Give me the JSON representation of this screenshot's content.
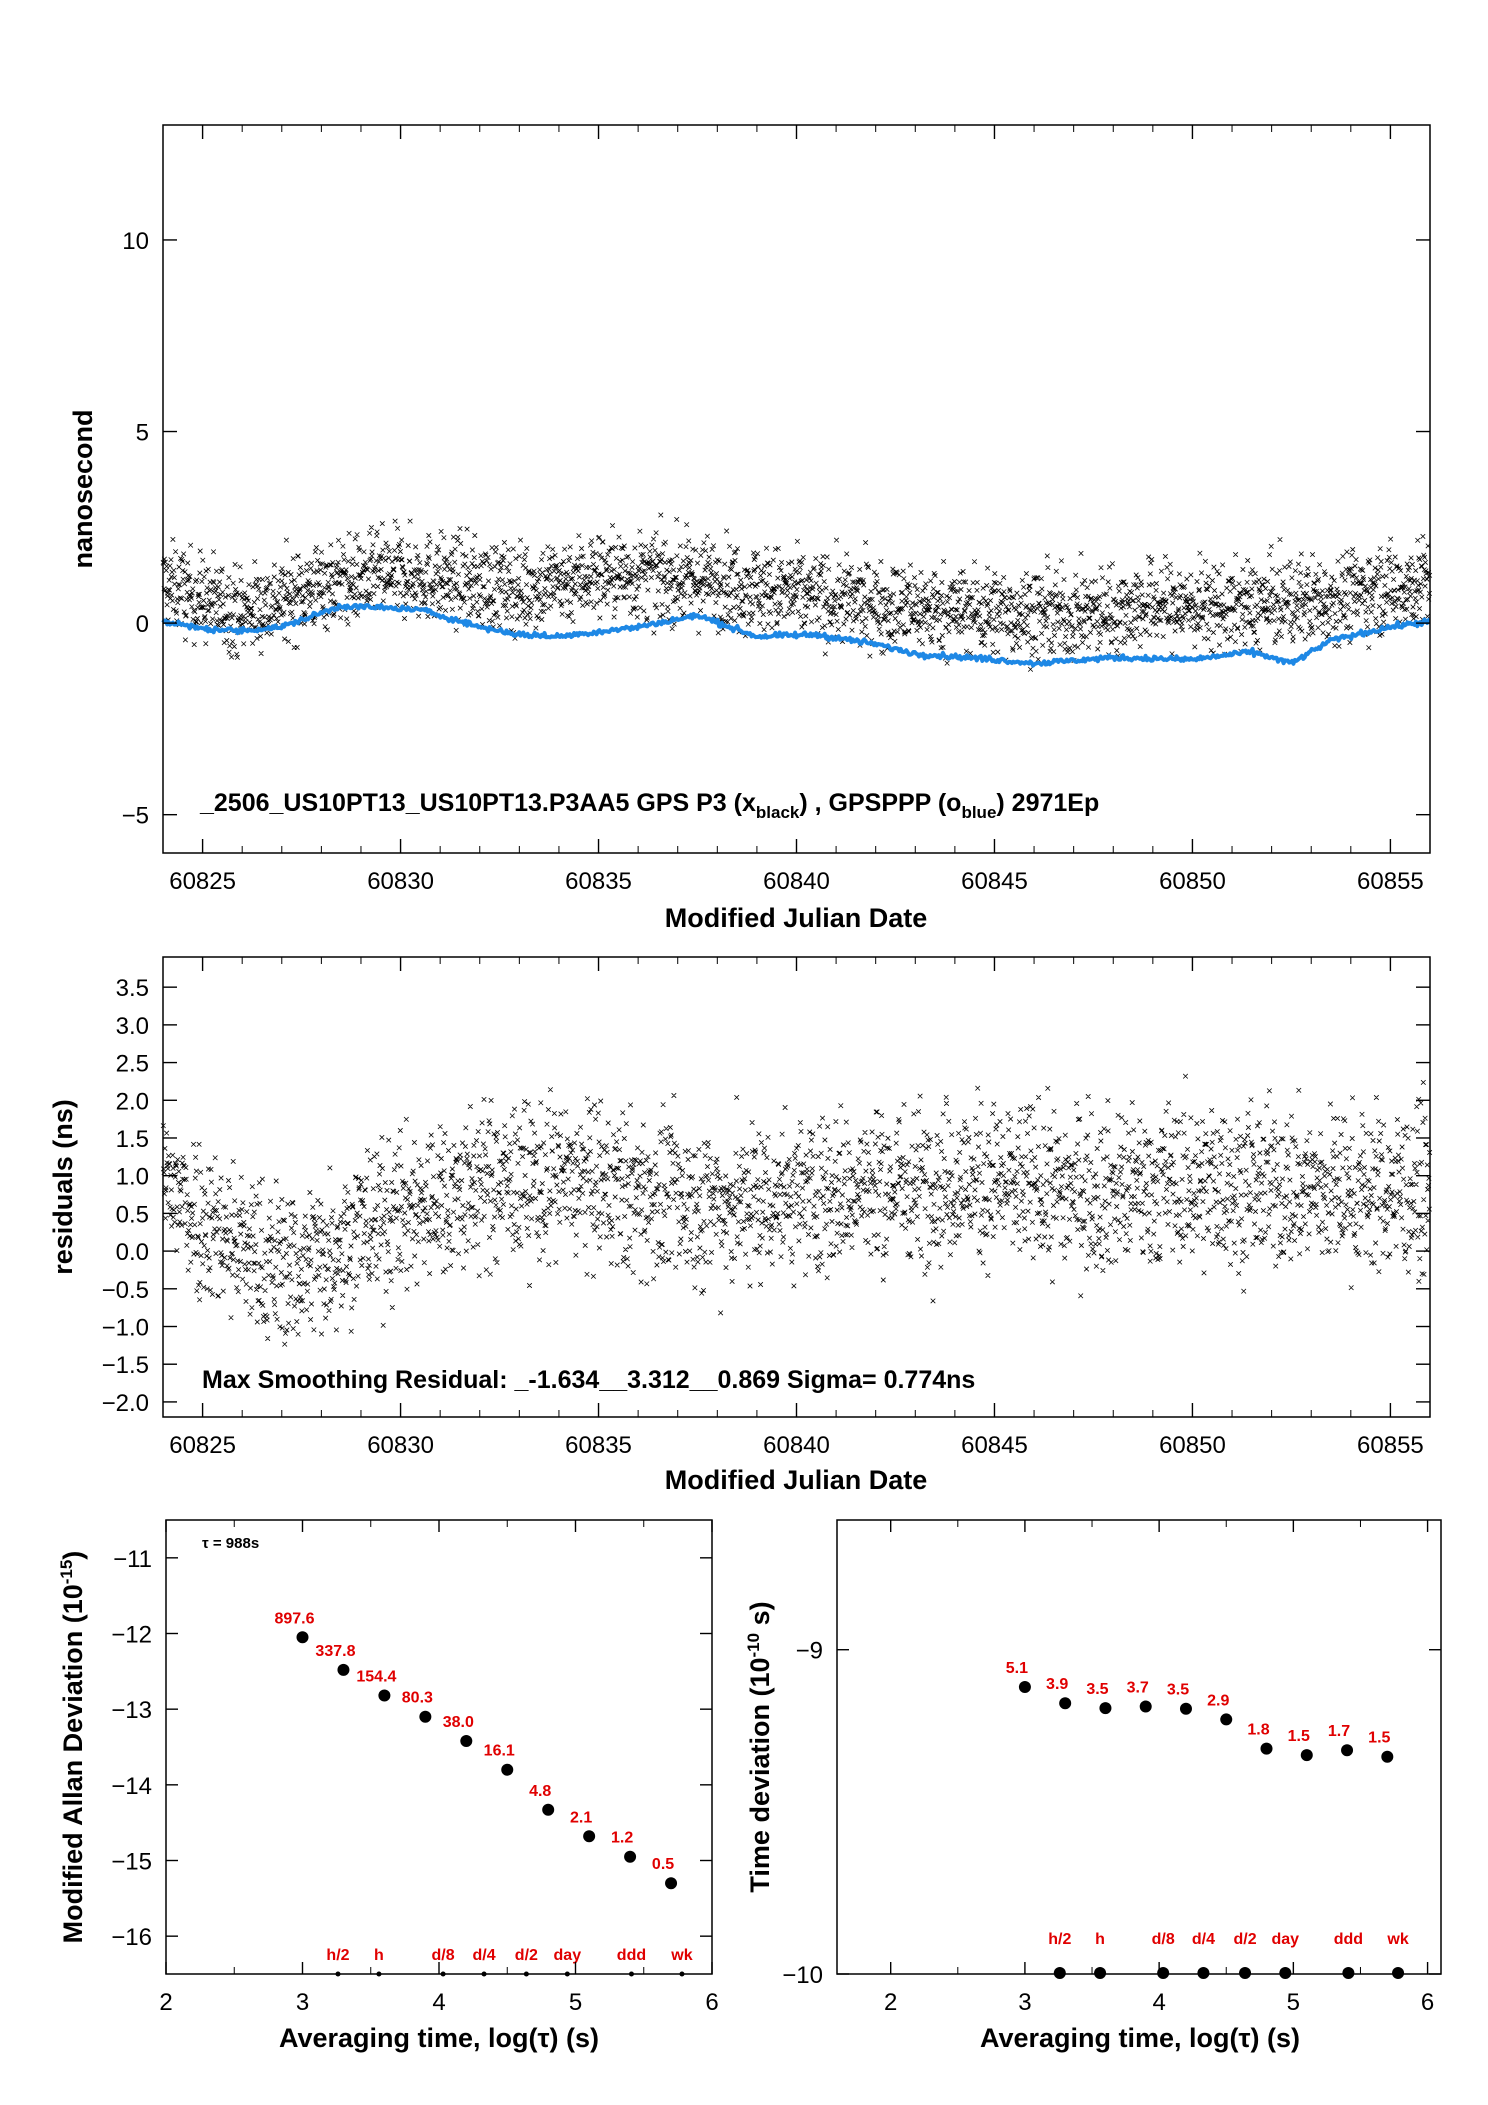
{
  "chart_data": [
    {
      "type": "scatter",
      "ylabel": "nanosecond",
      "xlabel": "Modified Julian Date",
      "xlim": [
        60824,
        60856
      ],
      "ylim": [
        -6,
        13
      ],
      "xticks": [
        "60825",
        "60830",
        "60835",
        "60840",
        "60845",
        "60850",
        "60855"
      ],
      "yticks": [
        "−5",
        "0",
        "5",
        "10"
      ],
      "annotation": {
        "prefix": "_2506_US10PT13_US10PT13.P3AA5     GPS P3 (x",
        "sub1": "black",
        "mid": ") ,  GPSPPP (o",
        "sub2": "blue",
        "suffix": ")  2971Ep"
      },
      "series": [
        {
          "marker": "x",
          "color": "#000000",
          "trend": [
            [
              60824,
              1.0
            ],
            [
              60826,
              0.3
            ],
            [
              60828,
              1.0
            ],
            [
              60830,
              1.3
            ],
            [
              60833,
              0.9
            ],
            [
              60835,
              1.3
            ],
            [
              60838,
              1.1
            ],
            [
              60841,
              0.6
            ],
            [
              60843,
              0.4
            ],
            [
              60845,
              0.3
            ],
            [
              60847,
              0.2
            ],
            [
              60849,
              0.5
            ],
            [
              60851,
              0.4
            ],
            [
              60853,
              0.6
            ],
            [
              60856,
              1.1
            ]
          ],
          "spread": 0.8
        },
        {
          "marker": "o",
          "color": "#1e88e5",
          "trend": [
            [
              60824,
              0.05
            ],
            [
              60825,
              -0.15
            ],
            [
              60826,
              -0.2
            ],
            [
              60827,
              -0.1
            ],
            [
              60828.5,
              0.45
            ],
            [
              60829.5,
              0.4
            ],
            [
              60830.5,
              0.35
            ],
            [
              60832,
              -0.1
            ],
            [
              60833,
              -0.3
            ],
            [
              60834,
              -0.35
            ],
            [
              60836,
              -0.1
            ],
            [
              60837.5,
              0.2
            ],
            [
              60839,
              -0.35
            ],
            [
              60840.5,
              -0.3
            ],
            [
              60842,
              -0.55
            ],
            [
              60843,
              -0.8
            ],
            [
              60845,
              -0.95
            ],
            [
              60846,
              -1.05
            ],
            [
              60848,
              -0.9
            ],
            [
              60850,
              -0.95
            ],
            [
              60851.5,
              -0.75
            ],
            [
              60852.5,
              -1.05
            ],
            [
              60853.5,
              -0.45
            ],
            [
              60855,
              -0.1
            ],
            [
              60856,
              0.05
            ]
          ]
        }
      ]
    },
    {
      "type": "scatter",
      "ylabel": "residuals (ns)",
      "xlabel": "Modified Julian Date",
      "xlim": [
        60824,
        60856
      ],
      "ylim": [
        -2.2,
        3.9
      ],
      "xticks": [
        "60825",
        "60830",
        "60835",
        "60840",
        "60845",
        "60850",
        "60855"
      ],
      "yticks": [
        "3.5",
        "3.0",
        "2.5",
        "2.0",
        "1.5",
        "1.0",
        "0.5",
        "0.0",
        "−0.5",
        "−1.0",
        "−1.5",
        "−2.0"
      ],
      "annotation": "Max Smoothing Residual: _-1.634__3.312__0.869  Sigma= 0.774ns",
      "series": [
        {
          "marker": "x",
          "color": "#000000",
          "trend": [
            [
              60824,
              0.9
            ],
            [
              60825,
              0.45
            ],
            [
              60826.5,
              -0.15
            ],
            [
              60827.5,
              -0.2
            ],
            [
              60829,
              0.3
            ],
            [
              60830.5,
              0.6
            ],
            [
              60832,
              0.85
            ],
            [
              60834,
              0.95
            ],
            [
              60836,
              0.75
            ],
            [
              60838,
              0.6
            ],
            [
              60840,
              0.75
            ],
            [
              60842,
              0.85
            ],
            [
              60844,
              0.95
            ],
            [
              60846,
              0.85
            ],
            [
              60848,
              0.8
            ],
            [
              60850,
              0.9
            ],
            [
              60852,
              0.85
            ],
            [
              60854,
              0.8
            ],
            [
              60856,
              0.8
            ]
          ],
          "spread": 0.75
        }
      ]
    },
    {
      "type": "scatter",
      "ylabel_main": "Modified Allan Deviation (10",
      "ylabel_sup": "-15",
      "ylabel_end": ")",
      "xlabel": "Averaging time, log(τ) (s)",
      "xlim": [
        2,
        6
      ],
      "ylim": [
        -16.5,
        -10.5
      ],
      "xticks": [
        "2",
        "3",
        "4",
        "5",
        "6"
      ],
      "yticks": [
        "−11",
        "−12",
        "−13",
        "−14",
        "−15",
        "−16"
      ],
      "tau_note": "τ = 988s",
      "points": [
        {
          "x": 3.0,
          "y": -12.05,
          "label": "897.6"
        },
        {
          "x": 3.3,
          "y": -12.48,
          "label": "337.8"
        },
        {
          "x": 3.6,
          "y": -12.82,
          "label": "154.4"
        },
        {
          "x": 3.9,
          "y": -13.1,
          "label": "80.3"
        },
        {
          "x": 4.2,
          "y": -13.42,
          "label": "38.0"
        },
        {
          "x": 4.5,
          "y": -13.8,
          "label": "16.1"
        },
        {
          "x": 4.8,
          "y": -14.33,
          "label": "4.8"
        },
        {
          "x": 5.1,
          "y": -14.68,
          "label": "2.1"
        },
        {
          "x": 5.4,
          "y": -14.95,
          "label": "1.2"
        },
        {
          "x": 5.7,
          "y": -15.3,
          "label": "0.5"
        }
      ],
      "time_markers": [
        {
          "x": 3.26,
          "label": "h/2"
        },
        {
          "x": 3.56,
          "label": "h"
        },
        {
          "x": 4.03,
          "label": "d/8"
        },
        {
          "x": 4.33,
          "label": "d/4"
        },
        {
          "x": 4.64,
          "label": "d/2"
        },
        {
          "x": 4.94,
          "label": "day"
        },
        {
          "x": 5.41,
          "label": "ddd"
        },
        {
          "x": 5.78,
          "label": "wk"
        }
      ]
    },
    {
      "type": "scatter",
      "ylabel_main": "Time deviation (10",
      "ylabel_sup": "-10",
      "ylabel_end": " s)",
      "xlabel": "Averaging time, log(τ) (s)",
      "xlim": [
        1.6,
        6.1
      ],
      "ylim": [
        -10.0,
        -8.6
      ],
      "xticks": [
        "2",
        "3",
        "4",
        "5",
        "6"
      ],
      "yticks": [
        "−9",
        "−10"
      ],
      "points": [
        {
          "x": 3.0,
          "y": -9.115,
          "label": "5.1"
        },
        {
          "x": 3.3,
          "y": -9.165,
          "label": "3.9"
        },
        {
          "x": 3.6,
          "y": -9.18,
          "label": "3.5"
        },
        {
          "x": 3.9,
          "y": -9.175,
          "label": "3.7"
        },
        {
          "x": 4.2,
          "y": -9.182,
          "label": "3.5"
        },
        {
          "x": 4.5,
          "y": -9.215,
          "label": "2.9"
        },
        {
          "x": 4.8,
          "y": -9.305,
          "label": "1.8"
        },
        {
          "x": 5.1,
          "y": -9.325,
          "label": "1.5"
        },
        {
          "x": 5.4,
          "y": -9.31,
          "label": "1.7"
        },
        {
          "x": 5.7,
          "y": -9.33,
          "label": "1.5"
        }
      ],
      "time_markers": [
        {
          "x": 3.26,
          "label": "h/2"
        },
        {
          "x": 3.56,
          "label": "h"
        },
        {
          "x": 4.03,
          "label": "d/8"
        },
        {
          "x": 4.33,
          "label": "d/4"
        },
        {
          "x": 4.64,
          "label": "d/2"
        },
        {
          "x": 4.94,
          "label": "day"
        },
        {
          "x": 5.41,
          "label": "ddd"
        },
        {
          "x": 5.78,
          "label": "wk"
        }
      ]
    }
  ]
}
